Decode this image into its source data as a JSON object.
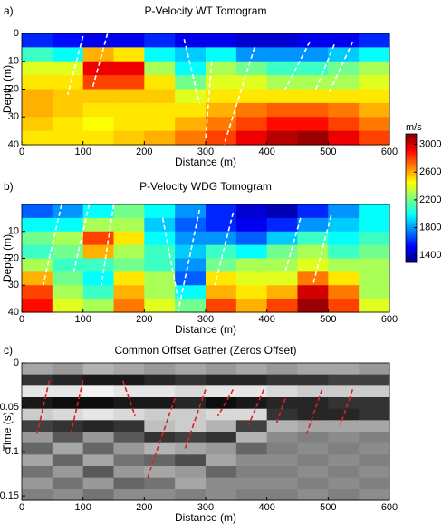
{
  "chart_data": [
    {
      "type": "heatmap",
      "panel_label": "a)",
      "title": "P-Velocity WT Tomogram",
      "xlabel": "Distance (m)",
      "ylabel": "Depth (m)",
      "xlim": [
        0,
        600
      ],
      "ylim": [
        0,
        40
      ],
      "invert_y": true,
      "xticks": [
        0,
        100,
        200,
        300,
        400,
        500,
        600
      ],
      "yticks": [
        0,
        10,
        20,
        30,
        40
      ],
      "colormap": "jet",
      "colorbar": {
        "label": "m/s",
        "lim": [
          1300,
          3150
        ],
        "ticks": [
          1400,
          1800,
          2200,
          2600,
          3000
        ]
      },
      "z": [
        [
          1600,
          1550,
          1500,
          1500,
          1600,
          1500,
          1500,
          1450,
          1450,
          1500,
          1500,
          1600
        ],
        [
          2100,
          2000,
          2600,
          2500,
          2000,
          1900,
          2000,
          1800,
          1800,
          1800,
          1900,
          2000
        ],
        [
          2400,
          2400,
          2950,
          2950,
          2300,
          2000,
          2300,
          2200,
          2100,
          2100,
          2200,
          2300
        ],
        [
          2500,
          2500,
          2800,
          2800,
          2500,
          2200,
          2400,
          2400,
          2300,
          2300,
          2300,
          2400
        ],
        [
          2600,
          2550,
          2550,
          2550,
          2550,
          2400,
          2500,
          2500,
          2500,
          2500,
          2500,
          2500
        ],
        [
          2600,
          2550,
          2500,
          2500,
          2500,
          2500,
          2600,
          2700,
          2750,
          2750,
          2700,
          2600
        ],
        [
          2550,
          2500,
          2450,
          2500,
          2500,
          2600,
          2700,
          2800,
          2900,
          2900,
          2800,
          2700
        ],
        [
          2500,
          2500,
          2500,
          2550,
          2600,
          2700,
          2800,
          2950,
          3050,
          3100,
          2950,
          2800
        ]
      ],
      "line_color": "#ffffff",
      "lines": [
        [
          100,
          1,
          75,
          22
        ],
        [
          140,
          0,
          115,
          20
        ],
        [
          265,
          2,
          290,
          25
        ],
        [
          310,
          10,
          300,
          38
        ],
        [
          380,
          5,
          330,
          40
        ],
        [
          470,
          3,
          430,
          20
        ],
        [
          510,
          4,
          480,
          20
        ],
        [
          540,
          3,
          500,
          22
        ]
      ]
    },
    {
      "type": "heatmap",
      "panel_label": "b)",
      "title": "P-Velocity WDG Tomogram",
      "xlabel": "Distance (m)",
      "ylabel": "Depth (m)",
      "xlim": [
        0,
        600
      ],
      "ylim": [
        0,
        40
      ],
      "invert_y": true,
      "xticks": [
        0,
        100,
        200,
        300,
        400,
        500,
        600
      ],
      "yticks": [
        10,
        20,
        30,
        40
      ],
      "colormap": "jet",
      "clim": [
        1300,
        3150
      ],
      "z": [
        [
          1700,
          1800,
          2000,
          2200,
          2000,
          1800,
          1600,
          1450,
          1400,
          1600,
          1800,
          2000
        ],
        [
          2000,
          2000,
          2300,
          2300,
          1900,
          1700,
          1600,
          1500,
          1600,
          1800,
          1900,
          2000
        ],
        [
          2200,
          2300,
          2800,
          2500,
          2000,
          1800,
          1800,
          1700,
          1900,
          2100,
          2000,
          2100
        ],
        [
          2100,
          2200,
          2600,
          2300,
          2100,
          1900,
          2100,
          2000,
          2200,
          2300,
          2100,
          2200
        ],
        [
          2300,
          2100,
          2100,
          2200,
          2100,
          1800,
          2200,
          2300,
          2300,
          2400,
          2300,
          2300
        ],
        [
          2600,
          2200,
          2000,
          2500,
          2300,
          1700,
          2500,
          2400,
          2400,
          2700,
          2500,
          2300
        ],
        [
          2800,
          2300,
          2100,
          2600,
          2300,
          2000,
          2600,
          2500,
          2600,
          3000,
          2700,
          2300
        ],
        [
          2900,
          2400,
          2300,
          2700,
          2400,
          2200,
          2800,
          2600,
          2800,
          3100,
          2800,
          2400
        ]
      ],
      "line_color": "#ffffff",
      "lines": [
        [
          65,
          0,
          35,
          30
        ],
        [
          110,
          0,
          85,
          25
        ],
        [
          150,
          0,
          130,
          30
        ],
        [
          230,
          5,
          255,
          35
        ],
        [
          290,
          2,
          255,
          40
        ],
        [
          345,
          3,
          315,
          30
        ],
        [
          455,
          5,
          430,
          25
        ],
        [
          505,
          4,
          475,
          30
        ]
      ]
    },
    {
      "type": "heatmap",
      "panel_label": "c)",
      "title": "Common Offset Gather (Zeros Offset)",
      "xlabel": "Distance (m)",
      "ylabel": "Time (s)",
      "xlim": [
        0,
        600
      ],
      "ylim": [
        0,
        0.155
      ],
      "invert_y": true,
      "xticks": [
        0,
        100,
        200,
        300,
        400,
        500,
        600
      ],
      "yticks": [
        0,
        0.05,
        0.1,
        0.15
      ],
      "colormap": "gray",
      "clim": [
        -1,
        1
      ],
      "z": [
        [
          0.3,
          0.2,
          0.4,
          0.3,
          0.2,
          0.3,
          0.2,
          0.3,
          0.2,
          0.3,
          0.3,
          0.2
        ],
        [
          -0.6,
          -0.7,
          -0.8,
          -0.8,
          -0.7,
          -0.6,
          -0.7,
          -0.7,
          -0.6,
          -0.6,
          -0.5,
          -0.5
        ],
        [
          0.8,
          0.8,
          0.9,
          0.8,
          0.8,
          0.7,
          0.8,
          0.8,
          0.7,
          0.6,
          0.6,
          0.6
        ],
        [
          -0.8,
          -0.9,
          -0.9,
          -0.8,
          -0.8,
          -0.7,
          -0.9,
          -0.8,
          -0.7,
          -0.7,
          -0.6,
          -0.6
        ],
        [
          0.6,
          0.7,
          0.8,
          0.7,
          0.6,
          0.6,
          0.7,
          0.7,
          -0.6,
          -0.7,
          -0.7,
          -0.6
        ],
        [
          -0.5,
          -0.6,
          -0.7,
          -0.6,
          0.5,
          0.6,
          0.4,
          -0.5,
          0.4,
          0.3,
          0.3,
          0.3
        ],
        [
          0.2,
          -0.3,
          0.2,
          -0.3,
          -0.6,
          -0.5,
          -0.6,
          0.4,
          0.1,
          0.0,
          0.1,
          0.0
        ],
        [
          -0.2,
          0.3,
          -0.2,
          0.2,
          0.4,
          0.3,
          0.2,
          -0.2,
          0.0,
          0.1,
          0.0,
          0.1
        ],
        [
          0.3,
          -0.2,
          0.3,
          -0.1,
          -0.2,
          -0.4,
          0.3,
          0.1,
          0.1,
          0.0,
          0.1,
          0.0
        ],
        [
          -0.1,
          0.2,
          -0.3,
          0.2,
          0.3,
          0.2,
          -0.2,
          0.0,
          0.0,
          0.1,
          0.0,
          0.1
        ],
        [
          0.2,
          -0.1,
          0.2,
          -0.2,
          -0.1,
          0.3,
          0.1,
          0.1,
          0.1,
          0.0,
          0.1,
          0.0
        ],
        [
          0.0,
          0.1,
          -0.1,
          0.1,
          0.1,
          0.0,
          0.1,
          0.0,
          0.0,
          0.1,
          0.0,
          0.1
        ]
      ],
      "line_color": "#dd2222",
      "lines": [
        [
          45,
          0.02,
          25,
          0.08
        ],
        [
          100,
          0.02,
          80,
          0.08
        ],
        [
          165,
          0.02,
          185,
          0.06
        ],
        [
          250,
          0.04,
          205,
          0.13
        ],
        [
          300,
          0.03,
          265,
          0.1
        ],
        [
          345,
          0.03,
          320,
          0.06
        ],
        [
          395,
          0.03,
          370,
          0.07
        ],
        [
          430,
          0.04,
          415,
          0.07
        ],
        [
          490,
          0.03,
          465,
          0.08
        ],
        [
          540,
          0.03,
          520,
          0.07
        ]
      ]
    }
  ]
}
